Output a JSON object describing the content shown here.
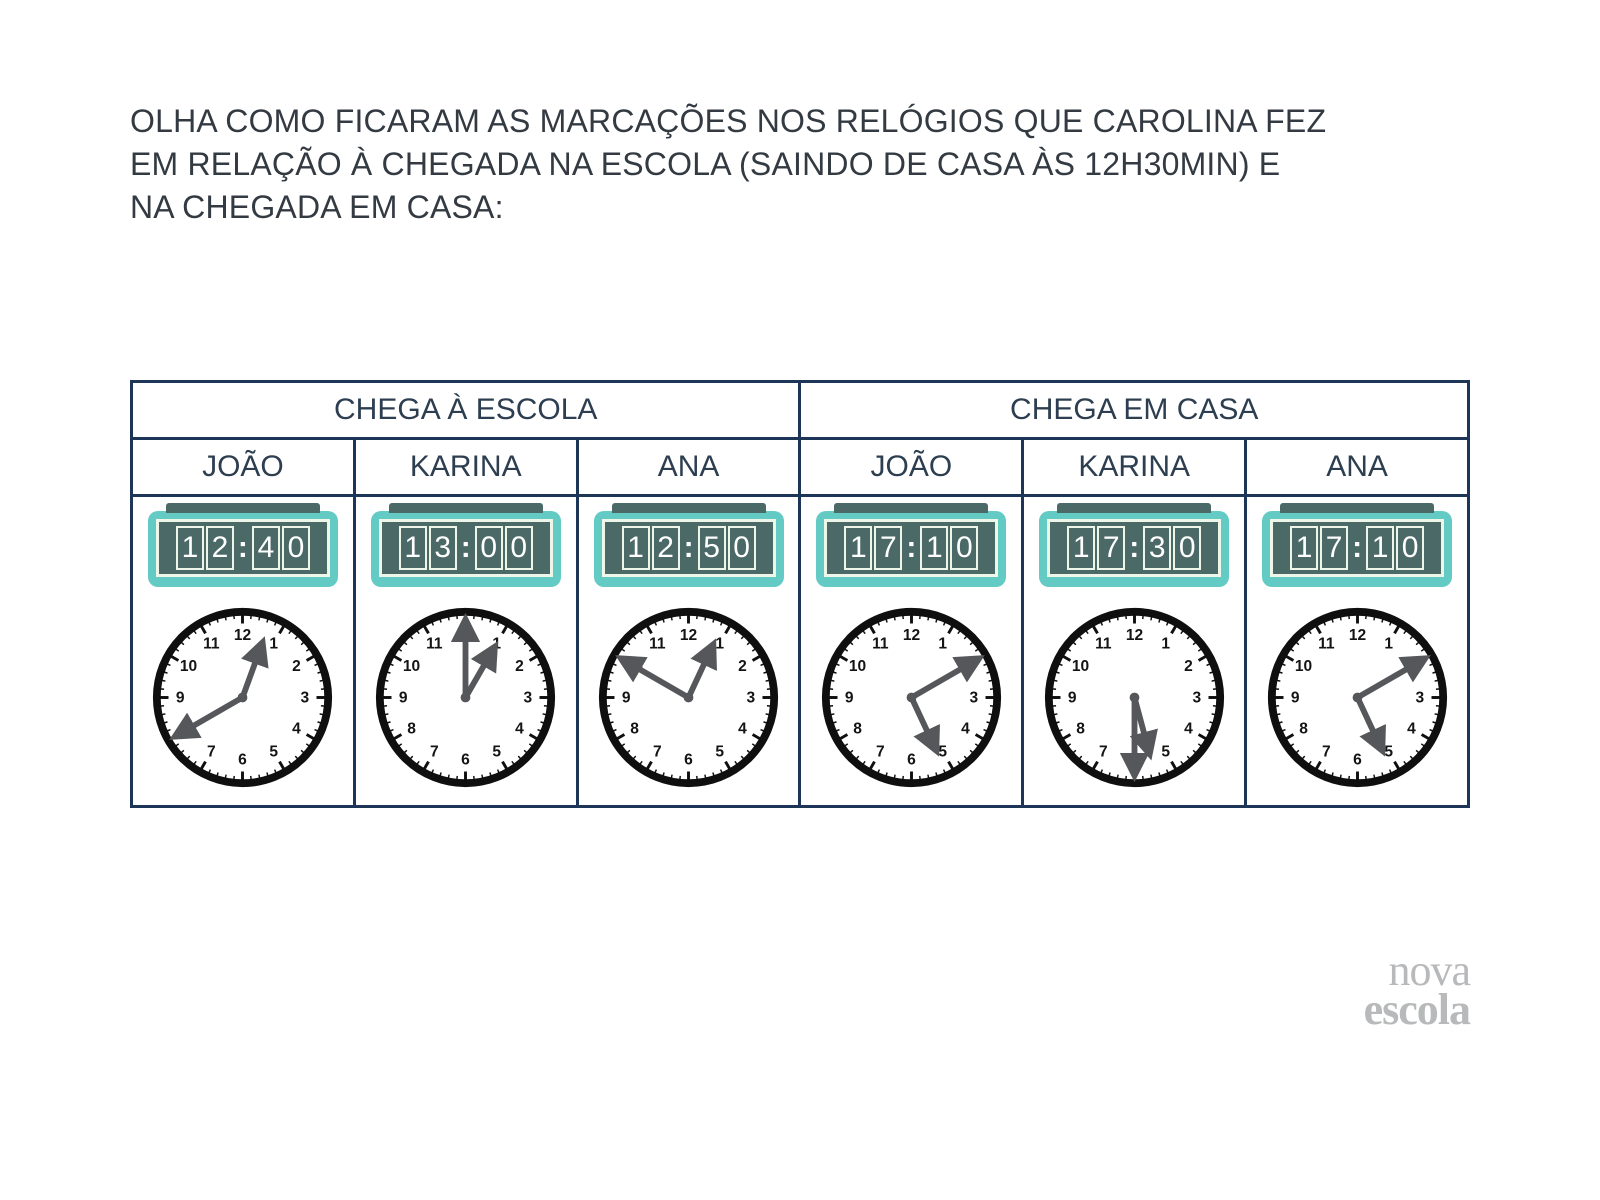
{
  "colors": {
    "border": "#1d3557",
    "text": "#2c3e50",
    "digital_body": "#63cbc4",
    "digital_screen": "#4a6967",
    "digital_frame": "#eef6e9",
    "digital_digit": "#ffffff",
    "clock_stroke": "#0f0f0f",
    "clock_hand": "#55575a",
    "clock_num": "#141414",
    "logo": "#b7b9bb",
    "background": "#ffffff"
  },
  "prompt": "OLHA COMO FICARAM AS MARCAÇÕES NOS RELÓGIOS QUE CAROLINA FEZ EM RELAÇÃO À CHEGADA NA ESCOLA (SAINDO DE CASA ÀS 12H30MIN) E NA CHEGADA EM CASA:",
  "headers": {
    "group1": "CHEGA À ESCOLA",
    "group2": "CHEGA EM CASA"
  },
  "names": [
    "JOÃO",
    "KARINA",
    "ANA",
    "JOÃO",
    "KARINA",
    "ANA"
  ],
  "clocks": [
    {
      "digital": "12:40",
      "hour": 12,
      "minute": 40
    },
    {
      "digital": "13:00",
      "hour": 13,
      "minute": 0
    },
    {
      "digital": "12:50",
      "hour": 12,
      "minute": 50
    },
    {
      "digital": "17:10",
      "hour": 17,
      "minute": 10
    },
    {
      "digital": "17:30",
      "hour": 17,
      "minute": 30
    },
    {
      "digital": "17:10",
      "hour": 17,
      "minute": 10
    }
  ],
  "logo": {
    "line1": "nova",
    "line2": "escola"
  },
  "analog_style": {
    "face_radius": 88,
    "rim_width": 8,
    "hour_hand_len": 46,
    "minute_hand_len": 66,
    "hand_width": 6,
    "num_fontsize": 16
  }
}
